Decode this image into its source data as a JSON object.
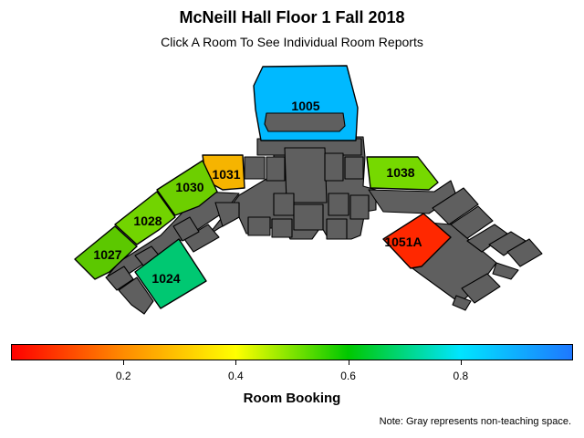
{
  "header": {
    "title": "McNeill Hall Floor 1 Fall 2018",
    "subtitle": "Click A Room To See Individual Room Reports"
  },
  "rooms": [
    {
      "id": "1005",
      "booking": 0.93,
      "color": "#00b9ff"
    },
    {
      "id": "1031",
      "booking": 0.45,
      "color": "#f6b400"
    },
    {
      "id": "1030",
      "booking": 0.64,
      "color": "#6dcf00"
    },
    {
      "id": "1028",
      "booking": 0.63,
      "color": "#72d400"
    },
    {
      "id": "1027",
      "booking": 0.65,
      "color": "#5cc800"
    },
    {
      "id": "1024",
      "booking": 0.75,
      "color": "#00c872"
    },
    {
      "id": "1038",
      "booking": 0.63,
      "color": "#76d900"
    },
    {
      "id": "1051A",
      "booking": 0.04,
      "color": "#ff2800"
    }
  ],
  "colorbar": {
    "title": "Room Booking",
    "ticks": [
      "0.2",
      "0.4",
      "0.6",
      "0.8"
    ],
    "tick_values": [
      0.2,
      0.4,
      0.6,
      0.8
    ],
    "range": [
      0,
      1
    ],
    "colors": [
      "#ff0000",
      "#ff8c00",
      "#ffff00",
      "#00c800",
      "#00e5ff",
      "#1e78ff"
    ]
  },
  "legend_note": "Note: Gray represents non-teaching space.",
  "gray_color": "#5f5f5f"
}
